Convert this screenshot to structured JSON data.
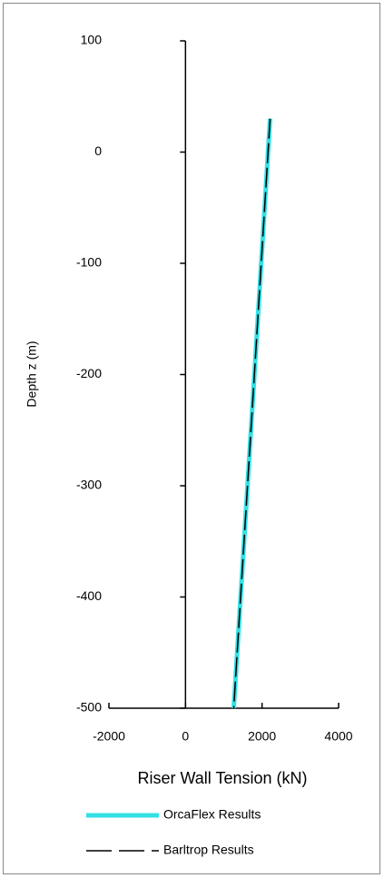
{
  "chart_data": {
    "type": "line",
    "x_label": "Riser Wall Tension (kN)",
    "y_label": "Depth z (m)",
    "y": [
      30,
      0,
      -100,
      -200,
      -300,
      -400,
      -500
    ],
    "series": [
      {
        "name": "OrcaFlex Results",
        "color": "#33e0e6",
        "style": "solid",
        "values": [
          2210,
          2157,
          1978,
          1800,
          1620,
          1440,
          1260
        ]
      },
      {
        "name": "Barltrop Results",
        "color": "#000000",
        "style": "dashed",
        "values": [
          2210,
          2157,
          1978,
          1800,
          1620,
          1440,
          1260
        ]
      }
    ],
    "xlim": [
      -2000,
      4000
    ],
    "xticks": [
      -2000,
      0,
      2000,
      4000
    ],
    "ylim": [
      -500,
      100
    ],
    "yticks": [
      100,
      0,
      -100,
      -200,
      -300,
      -400,
      -500
    ],
    "grid": false,
    "legend": "bottom"
  }
}
